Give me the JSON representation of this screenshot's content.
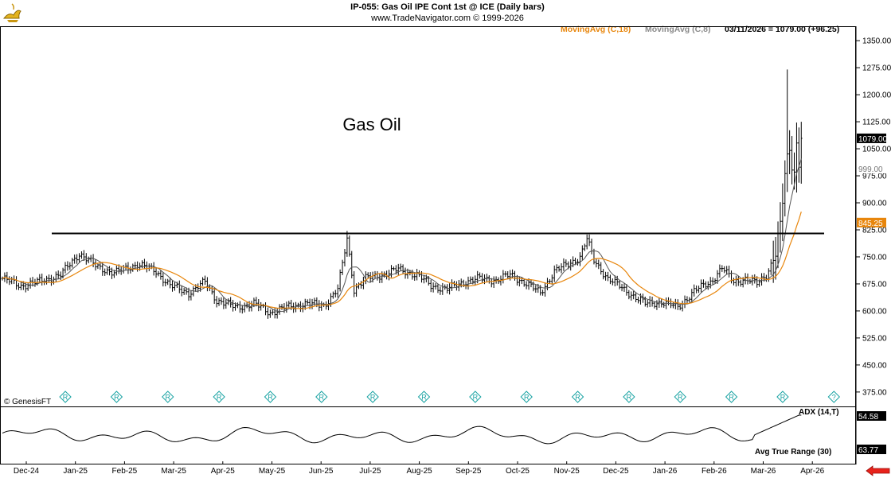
{
  "header": {
    "title": "IP-055:  Gas Oil IPE Cont 1st @ ICE  (Daily bars)",
    "subtitle": "www.TradeNavigator.com © 1999-2026",
    "ma18_label": "MovingAvg (C,18)",
    "ma8_label": "MovingAvg (C,8)",
    "last_quote": "03/11/2026 = 1079.00 (+96.25)"
  },
  "watermark": "© GenesisFT",
  "colors": {
    "ma18": "#e8860c",
    "ma8": "#555555",
    "bars": "#000000",
    "line": "#000000"
  },
  "icons": {
    "logo": "genie-lamp-icon",
    "events": "R-marker-icon",
    "nav": "red-left-arrow-icon"
  },
  "chart_data": {
    "type": "ohlc",
    "title": "Gas Oil",
    "y_ticks": [
      1350,
      1275,
      1200,
      1125,
      1050,
      975,
      900,
      825,
      750,
      675,
      600,
      525,
      450,
      375
    ],
    "ylim": [
      335,
      1390
    ],
    "x_ticks": [
      "Dec-24",
      "Jan-25",
      "Feb-25",
      "Mar-25",
      "Apr-25",
      "May-25",
      "Jun-25",
      "Jul-25",
      "Aug-25",
      "Sep-25",
      "Oct-25",
      "Nov-25",
      "Dec-25",
      "Jan-26",
      "Feb-26",
      "Mar-26",
      "Apr-26"
    ],
    "price_tags": {
      "last": "1079.00",
      "prev": "999.00",
      "ma18": "845.25"
    },
    "resistance_level": 815,
    "close_keypoints": [
      [
        0,
        690
      ],
      [
        8,
        670
      ],
      [
        15,
        680
      ],
      [
        25,
        700
      ],
      [
        33,
        760
      ],
      [
        40,
        725
      ],
      [
        48,
        705
      ],
      [
        58,
        730
      ],
      [
        66,
        710
      ],
      [
        72,
        670
      ],
      [
        80,
        650
      ],
      [
        87,
        680
      ],
      [
        92,
        630
      ],
      [
        100,
        610
      ],
      [
        108,
        620
      ],
      [
        115,
        595
      ],
      [
        122,
        610
      ],
      [
        130,
        620
      ],
      [
        138,
        615
      ],
      [
        144,
        660
      ],
      [
        148,
        800
      ],
      [
        151,
        660
      ],
      [
        156,
        690
      ],
      [
        163,
        700
      ],
      [
        170,
        715
      ],
      [
        178,
        700
      ],
      [
        184,
        670
      ],
      [
        191,
        660
      ],
      [
        198,
        680
      ],
      [
        205,
        690
      ],
      [
        212,
        685
      ],
      [
        218,
        700
      ],
      [
        224,
        680
      ],
      [
        231,
        650
      ],
      [
        237,
        710
      ],
      [
        243,
        730
      ],
      [
        248,
        750
      ],
      [
        251,
        800
      ],
      [
        254,
        740
      ],
      [
        260,
        690
      ],
      [
        268,
        655
      ],
      [
        276,
        620
      ],
      [
        283,
        625
      ],
      [
        290,
        610
      ],
      [
        297,
        655
      ],
      [
        304,
        680
      ],
      [
        309,
        720
      ],
      [
        314,
        680
      ],
      [
        319,
        690
      ],
      [
        324,
        675
      ],
      [
        328,
        700
      ],
      [
        331,
        745
      ],
      [
        334,
        820
      ],
      [
        336,
        980
      ],
      [
        338,
        1040
      ],
      [
        340,
        1000
      ],
      [
        341,
        1060
      ],
      [
        342,
        1020
      ],
      [
        343,
        1079
      ]
    ],
    "events": [
      26,
      48,
      70,
      92,
      114,
      136,
      158,
      180,
      202,
      224,
      246,
      268,
      290,
      312,
      334,
      356
    ],
    "indicators": [
      {
        "name": "ADX (14,T)",
        "last": "54.58"
      },
      {
        "name": "Avg True Range (30)",
        "last": "63.77"
      }
    ]
  }
}
